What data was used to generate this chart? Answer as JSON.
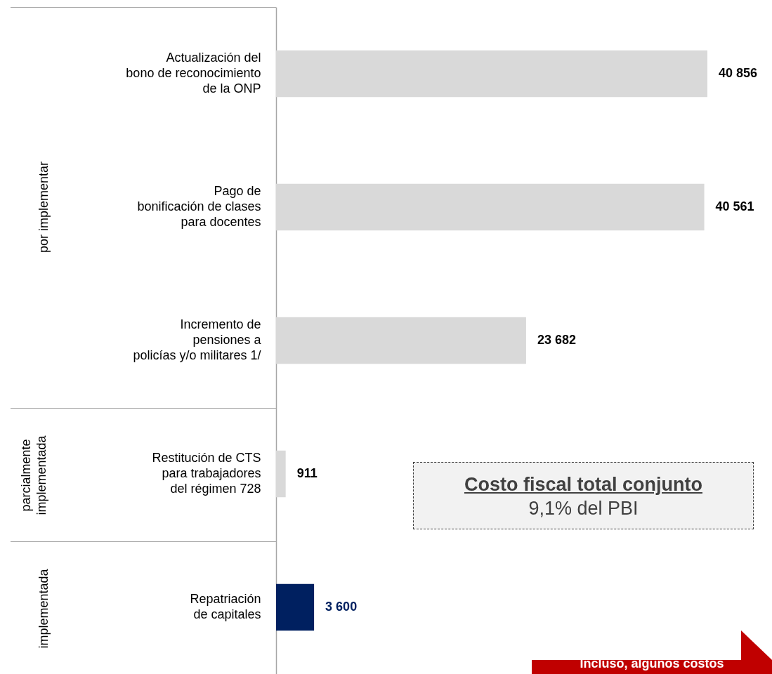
{
  "chart_data": {
    "type": "bar",
    "orientation": "horizontal",
    "categories": [
      "Actualización del\nbono de reconocimiento\nde la ONP",
      "Pago de\nbonificación de clases\npara docentes",
      "Incremento de\npensiones a\npolicías y/o militares 1/",
      "Restitución de CTS\npara trabajadores\ndel régimen 728",
      "Repatriación\nde capitales"
    ],
    "values": [
      40856,
      40561,
      23682,
      911,
      3600
    ],
    "colors": [
      "#d9d9d9",
      "#d9d9d9",
      "#d9d9d9",
      "#d9d9d9",
      "#002060"
    ],
    "value_labels": [
      "40 856",
      "40 561",
      "23 682",
      "911",
      "3 600"
    ],
    "annotations": [
      "por implementar",
      "parcialmente implementada",
      "implementada",
      "Costo fiscal total conjunto",
      "9,1% del PBI",
      "Incluso, algunos costos"
    ],
    "grid": false
  }
}
